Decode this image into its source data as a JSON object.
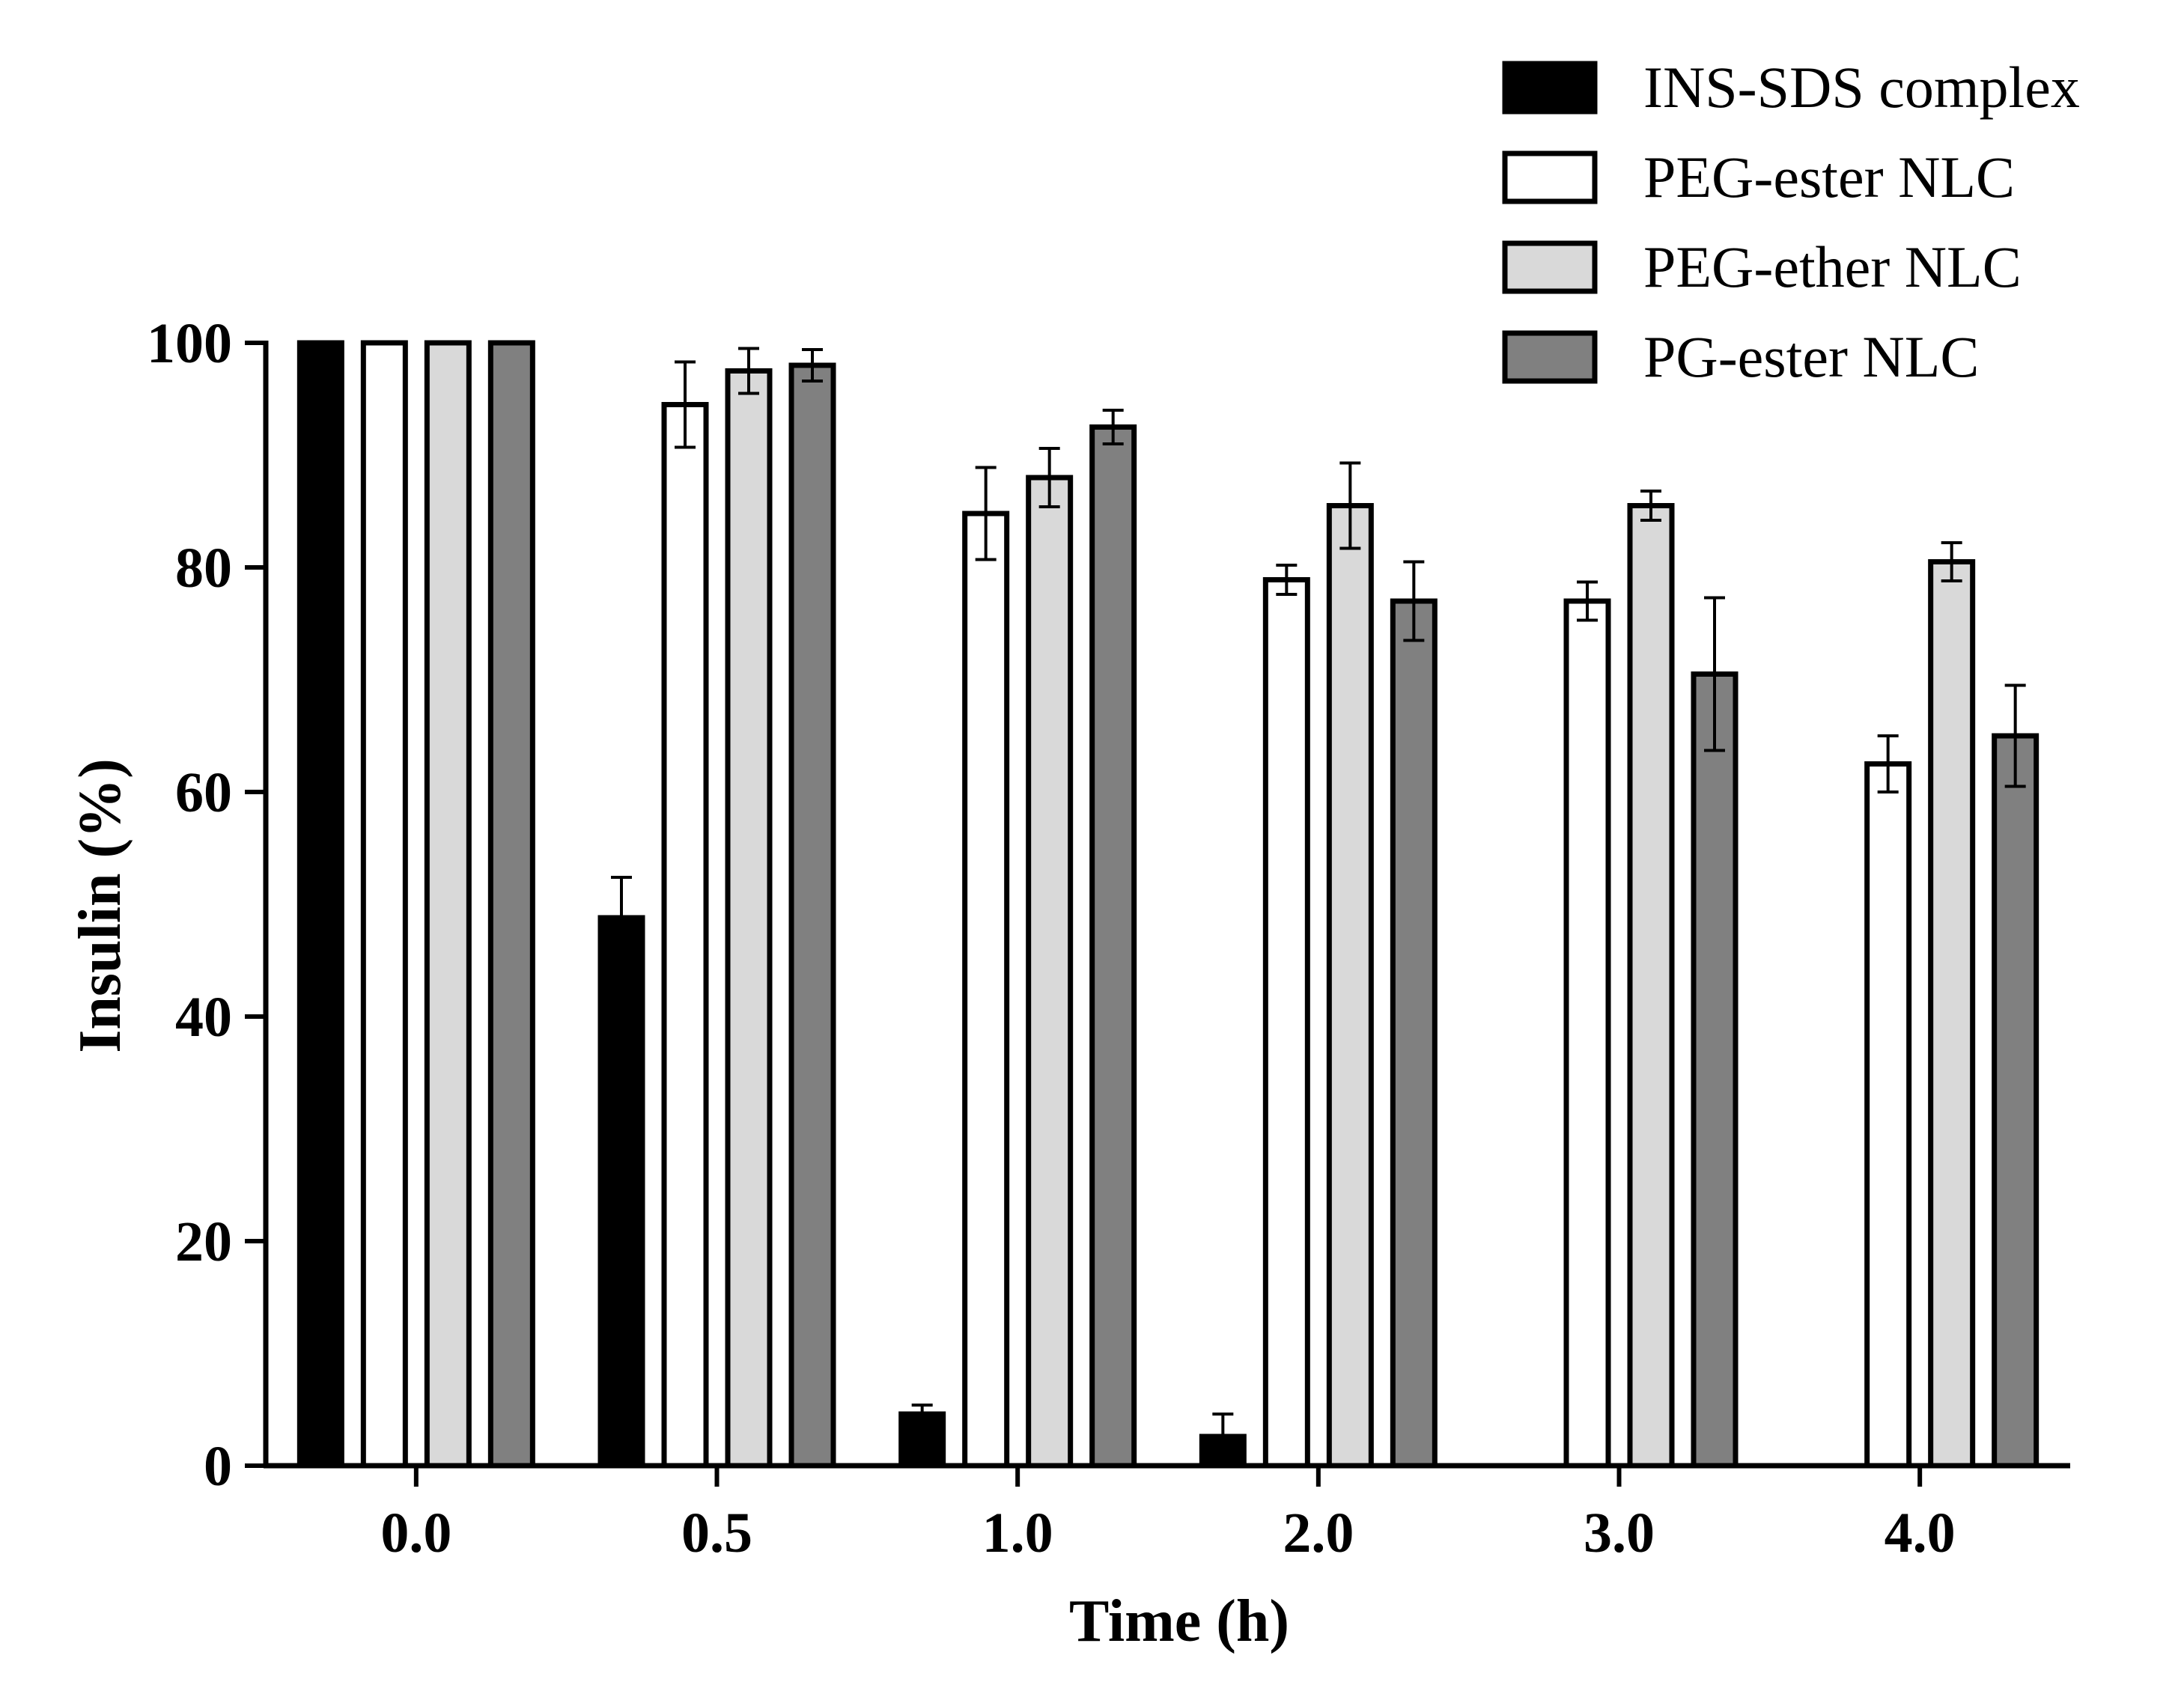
{
  "chart_data": {
    "type": "bar",
    "title": "",
    "xlabel": "Time (h)",
    "ylabel": "Insulin (%)",
    "ylim": [
      0,
      100
    ],
    "yticks": [
      0,
      20,
      40,
      60,
      80,
      100
    ],
    "grid": false,
    "legend_position": "top-right",
    "categories": [
      "0.0",
      "0.5",
      "1.0",
      "2.0",
      "3.0",
      "4.0"
    ],
    "series": [
      {
        "name": "INS-SDS complex",
        "color": "#000000",
        "values": [
          100,
          48.8,
          4.6,
          2.6,
          null,
          null
        ],
        "errors": [
          null,
          3.6,
          0.8,
          2.0,
          null,
          null
        ]
      },
      {
        "name": "PEG-ester NLC",
        "color": "#ffffff",
        "values": [
          100,
          94.5,
          84.8,
          78.9,
          77.0,
          62.5
        ],
        "errors": [
          null,
          3.8,
          4.1,
          1.3,
          1.7,
          2.5
        ]
      },
      {
        "name": "PEG-ether NLC",
        "color": "#d9d9d9",
        "values": [
          100,
          97.5,
          88.0,
          85.5,
          85.5,
          80.5
        ],
        "errors": [
          null,
          2.0,
          2.6,
          3.8,
          1.3,
          1.7
        ]
      },
      {
        "name": "PG-ester NLC",
        "color": "#808080",
        "values": [
          100,
          98.0,
          92.5,
          77.0,
          70.5,
          65.0
        ],
        "errors": [
          null,
          1.4,
          1.5,
          3.5,
          6.8,
          4.5
        ]
      }
    ]
  }
}
